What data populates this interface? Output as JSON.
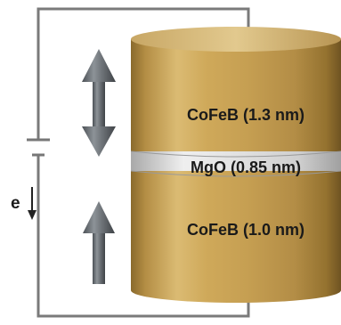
{
  "layers": {
    "top_free": "CoFeB (1.3 nm)",
    "barrier": "MgO (0.85 nm)",
    "bottom_fixed": "CoFeB (1.0 nm)"
  },
  "electron_label": "e",
  "colors": {
    "cofeb": "#c9a24f",
    "mgo": "#d8d8d8",
    "arrow": "#6e7378",
    "wire": "#777777"
  },
  "icons": {
    "free_layer_arrow": "double-arrow-up-down-icon",
    "fixed_layer_arrow": "arrow-up-icon",
    "electron_flow": "arrow-down-icon",
    "source": "battery-icon"
  }
}
